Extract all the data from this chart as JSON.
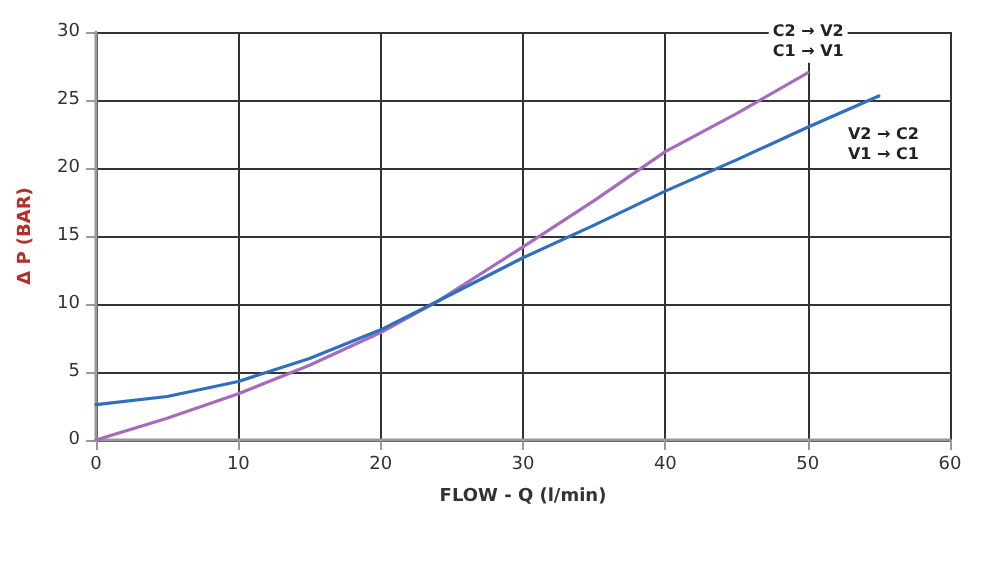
{
  "chart_data": {
    "type": "line",
    "xlabel": "FLOW - Q (l/min)",
    "ylabel": "Δ P (BAR)",
    "series": [
      {
        "name": "C2 → V2\nC1 → V1",
        "color": "#a66bbf",
        "x": [
          0,
          5,
          10,
          15,
          20,
          24,
          30,
          35,
          40,
          45,
          50
        ],
        "values": [
          0,
          1.6,
          3.4,
          5.5,
          7.9,
          10.2,
          14.2,
          17.6,
          21.2,
          24.0,
          27.0
        ]
      },
      {
        "name": "V2 → C2\nV1 → C1",
        "color": "#2f6fbf",
        "x": [
          0,
          5,
          10,
          15,
          20,
          24,
          30,
          35,
          40,
          45,
          50,
          55
        ],
        "values": [
          2.6,
          3.2,
          4.3,
          6.0,
          8.1,
          10.2,
          13.4,
          15.8,
          18.3,
          20.6,
          23.0,
          25.3
        ]
      }
    ],
    "xlim": [
      0,
      60
    ],
    "xticks": [
      0,
      10,
      20,
      30,
      40,
      50,
      60
    ],
    "ylim": [
      0,
      30
    ],
    "yticks": [
      0,
      5,
      10,
      15,
      20,
      25,
      30
    ],
    "grid": true,
    "marker": "none",
    "line_style": "solid"
  }
}
